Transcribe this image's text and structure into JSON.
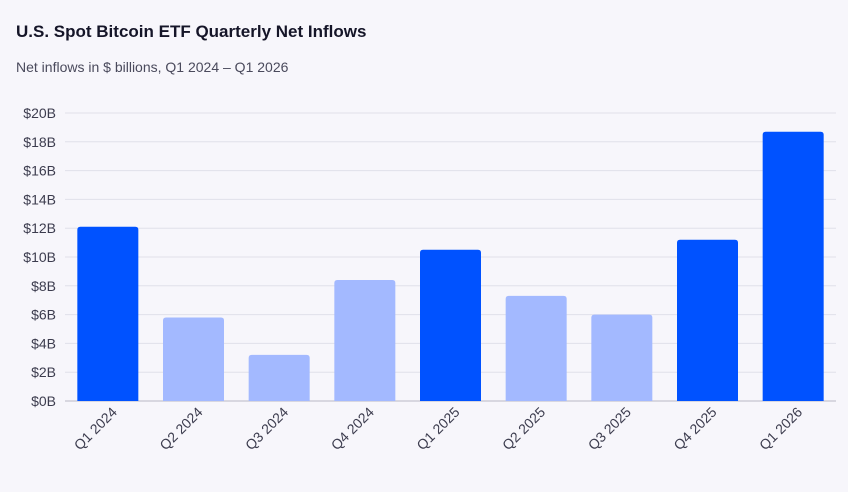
{
  "chart_data": {
    "type": "bar",
    "title": "U.S. Spot Bitcoin ETF Quarterly Net Inflows",
    "subtitle": "Net inflows in $ billions, Q1 2024 – Q1 2026",
    "xlabel": "",
    "ylabel": "",
    "categories": [
      "Q1 2024",
      "Q2 2024",
      "Q3 2024",
      "Q4 2024",
      "Q1 2025",
      "Q2 2025",
      "Q3 2025",
      "Q4 2025",
      "Q1 2026"
    ],
    "values": [
      12.1,
      5.8,
      3.2,
      8.4,
      10.5,
      7.3,
      6.0,
      11.2,
      18.7
    ],
    "highlight": [
      true,
      false,
      false,
      false,
      true,
      false,
      false,
      true,
      true
    ],
    "ylim": [
      0,
      20
    ],
    "yticks": [
      0,
      2,
      4,
      6,
      8,
      10,
      12,
      14,
      16,
      18,
      20
    ],
    "ytick_labels": [
      "$0B",
      "$2B",
      "$4B",
      "$6B",
      "$8B",
      "$10B",
      "$12B",
      "$14B",
      "$16B",
      "$18B",
      "$20B"
    ],
    "grid": true,
    "colors": {
      "highlight": "#0052ff",
      "normal": "#a3b9ff"
    }
  }
}
